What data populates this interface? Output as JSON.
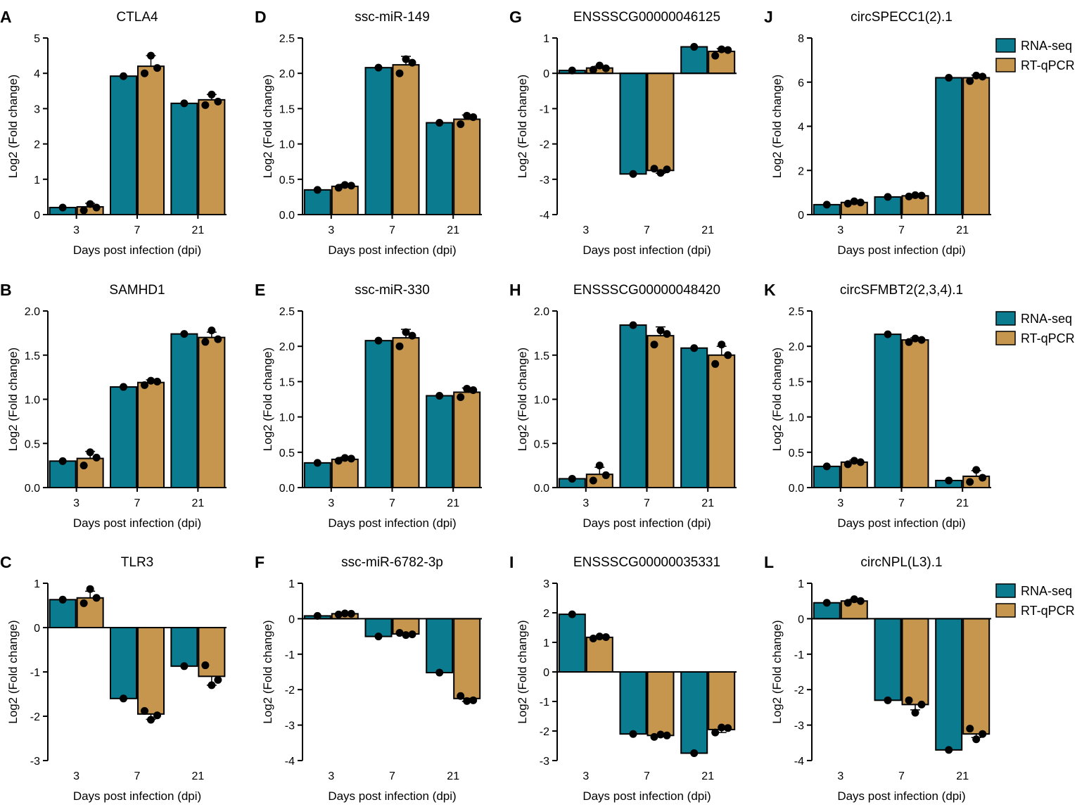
{
  "legend": {
    "items": [
      "RNA-seq",
      "RT-qPCR"
    ]
  },
  "colors": {
    "rnaseq": "#0b7c8f",
    "rtqpcr": "#c6964f",
    "points": "#000000"
  },
  "chart_data": [
    {
      "label": "A",
      "title": "CTLA4",
      "type": "bar",
      "categories": [
        "3",
        "7",
        "21"
      ],
      "xlabel": "Days post infection (dpi)",
      "ylabel": "Log2 (Fold change)",
      "ylim": [
        0,
        5
      ],
      "yticks": [
        0,
        1,
        2,
        3,
        4,
        5
      ],
      "ytick_labels": [
        "0",
        "1",
        "2",
        "3",
        "4",
        "5"
      ],
      "series": [
        {
          "name": "RNA-seq",
          "values": [
            0.2,
            3.92,
            3.15
          ],
          "errors": [
            0,
            0,
            0
          ],
          "points": [
            [
              0.2
            ],
            [
              3.92
            ],
            [
              3.15
            ]
          ]
        },
        {
          "name": "RT-qPCR",
          "values": [
            0.22,
            4.2,
            3.25
          ],
          "errors": [
            0.1,
            0.3,
            0.15
          ],
          "points": [
            [
              0.12,
              0.3,
              0.2
            ],
            [
              4.0,
              4.5,
              4.15
            ],
            [
              3.1,
              3.4,
              3.2
            ]
          ]
        }
      ]
    },
    {
      "label": "D",
      "title": "ssc-miR-149",
      "type": "bar",
      "categories": [
        "3",
        "7",
        "21"
      ],
      "xlabel": "Days post infection (dpi)",
      "ylabel": "Log2 (Fold change)",
      "ylim": [
        0,
        2.5
      ],
      "yticks": [
        0,
        0.5,
        1,
        1.5,
        2,
        2.5
      ],
      "ytick_labels": [
        "0.0",
        "0.5",
        "1.0",
        "1.5",
        "2.0",
        "2.5"
      ],
      "series": [
        {
          "name": "RNA-seq",
          "values": [
            0.35,
            2.08,
            1.3
          ],
          "errors": [
            0,
            0,
            0
          ],
          "points": [
            [
              0.35
            ],
            [
              2.08
            ],
            [
              1.3
            ]
          ]
        },
        {
          "name": "RT-qPCR",
          "values": [
            0.4,
            2.12,
            1.35
          ],
          "errors": [
            0.03,
            0.12,
            0.06
          ],
          "points": [
            [
              0.38,
              0.42,
              0.41
            ],
            [
              2.0,
              2.2,
              2.15
            ],
            [
              1.28,
              1.4,
              1.38
            ]
          ]
        }
      ]
    },
    {
      "label": "G",
      "title": "ENSSSCG00000046125",
      "type": "bar",
      "categories": [
        "3",
        "7",
        "21"
      ],
      "xlabel": "Days post infection (dpi)",
      "ylabel": "Log2 (Fold change)",
      "ylim": [
        -4,
        1
      ],
      "yticks": [
        -4,
        -3,
        -2,
        -1,
        0,
        1
      ],
      "ytick_labels": [
        "-4",
        "-3",
        "-2",
        "-1",
        "0",
        "1"
      ],
      "series": [
        {
          "name": "RNA-seq",
          "values": [
            0.08,
            -2.85,
            0.75
          ],
          "errors": [
            0,
            0,
            0
          ],
          "points": [
            [
              0.08
            ],
            [
              -2.85
            ],
            [
              0.75
            ]
          ]
        },
        {
          "name": "RT-qPCR",
          "values": [
            0.15,
            -2.75,
            0.62
          ],
          "errors": [
            0.06,
            0.08,
            0.08
          ],
          "points": [
            [
              0.1,
              0.22,
              0.14
            ],
            [
              -2.7,
              -2.82,
              -2.72
            ],
            [
              0.5,
              0.68,
              0.66
            ]
          ]
        }
      ]
    },
    {
      "label": "J",
      "title": "circSPECC1(2).1",
      "type": "bar",
      "categories": [
        "3",
        "7",
        "21"
      ],
      "xlabel": "Days post infection (dpi)",
      "ylabel": "Log2 (Fold change)",
      "ylim": [
        0,
        8
      ],
      "yticks": [
        0,
        2,
        4,
        6,
        8
      ],
      "ytick_labels": [
        "0",
        "2",
        "4",
        "6",
        "8"
      ],
      "series": [
        {
          "name": "RNA-seq",
          "values": [
            0.45,
            0.8,
            6.2
          ],
          "errors": [
            0,
            0,
            0
          ],
          "points": [
            [
              0.45
            ],
            [
              0.8
            ],
            [
              6.2
            ]
          ]
        },
        {
          "name": "RT-qPCR",
          "values": [
            0.55,
            0.85,
            6.2
          ],
          "errors": [
            0.05,
            0.05,
            0.12
          ],
          "points": [
            [
              0.5,
              0.6,
              0.55
            ],
            [
              0.82,
              0.88,
              0.86
            ],
            [
              6.05,
              6.3,
              6.25
            ]
          ]
        }
      ]
    },
    {
      "label": "B",
      "title": "SAMHD1",
      "type": "bar",
      "categories": [
        "3",
        "7",
        "21"
      ],
      "xlabel": "Days post infection (dpi)",
      "ylabel": "Log2 (Fold change)",
      "ylim": [
        0,
        2
      ],
      "yticks": [
        0,
        0.5,
        1,
        1.5,
        2
      ],
      "ytick_labels": [
        "0.0",
        "0.5",
        "1.0",
        "1.5",
        "2.0"
      ],
      "series": [
        {
          "name": "RNA-seq",
          "values": [
            0.3,
            1.14,
            1.74
          ],
          "errors": [
            0,
            0,
            0
          ],
          "points": [
            [
              0.3
            ],
            [
              1.14
            ],
            [
              1.74
            ]
          ]
        },
        {
          "name": "RT-qPCR",
          "values": [
            0.33,
            1.19,
            1.7
          ],
          "errors": [
            0.08,
            0.03,
            0.06
          ],
          "points": [
            [
              0.25,
              0.4,
              0.34
            ],
            [
              1.16,
              1.21,
              1.2
            ],
            [
              1.65,
              1.78,
              1.68
            ]
          ]
        }
      ]
    },
    {
      "label": "E",
      "title": "ssc-miR-330",
      "type": "bar",
      "categories": [
        "3",
        "7",
        "21"
      ],
      "xlabel": "Days post infection (dpi)",
      "ylabel": "Log2 (Fold change)",
      "ylim": [
        0,
        2.5
      ],
      "yticks": [
        0,
        0.5,
        1,
        1.5,
        2,
        2.5
      ],
      "ytick_labels": [
        "0.0",
        "0.5",
        "1.0",
        "1.5",
        "2.0",
        "2.5"
      ],
      "series": [
        {
          "name": "RNA-seq",
          "values": [
            0.35,
            2.08,
            1.3
          ],
          "errors": [
            0,
            0,
            0
          ],
          "points": [
            [
              0.35
            ],
            [
              2.08
            ],
            [
              1.3
            ]
          ]
        },
        {
          "name": "RT-qPCR",
          "values": [
            0.4,
            2.12,
            1.35
          ],
          "errors": [
            0.03,
            0.12,
            0.06
          ],
          "points": [
            [
              0.38,
              0.42,
              0.41
            ],
            [
              2.0,
              2.2,
              2.15
            ],
            [
              1.28,
              1.4,
              1.38
            ]
          ]
        }
      ]
    },
    {
      "label": "H",
      "title": "ENSSSCG00000048420",
      "type": "bar",
      "categories": [
        "3",
        "7",
        "21"
      ],
      "xlabel": "Days post infection (dpi)",
      "ylabel": "Log2 (Fold change)",
      "ylim": [
        0,
        2
      ],
      "yticks": [
        0,
        0.5,
        1,
        1.5,
        2
      ],
      "ytick_labels": [
        "0.0",
        "0.5",
        "1.0",
        "1.5",
        "2.0"
      ],
      "series": [
        {
          "name": "RNA-seq",
          "values": [
            0.1,
            1.84,
            1.58
          ],
          "errors": [
            0,
            0,
            0
          ],
          "points": [
            [
              0.1
            ],
            [
              1.84
            ],
            [
              1.58
            ]
          ]
        },
        {
          "name": "RT-qPCR",
          "values": [
            0.15,
            1.72,
            1.5
          ],
          "errors": [
            0.08,
            0.1,
            0.1
          ],
          "points": [
            [
              0.08,
              0.25,
              0.14
            ],
            [
              1.62,
              1.78,
              1.74
            ],
            [
              1.4,
              1.62,
              1.5
            ]
          ]
        }
      ]
    },
    {
      "label": "K",
      "title": "circSFMBT2(2,3,4).1",
      "type": "bar",
      "categories": [
        "3",
        "7",
        "21"
      ],
      "xlabel": "Days post infection (dpi)",
      "ylabel": "Log2 (Fold change)",
      "ylim": [
        0,
        2.5
      ],
      "yticks": [
        0,
        0.5,
        1,
        1.5,
        2,
        2.5
      ],
      "ytick_labels": [
        "0.0",
        "0.5",
        "1.0",
        "1.5",
        "2.0",
        "2.5"
      ],
      "series": [
        {
          "name": "RNA-seq",
          "values": [
            0.3,
            2.17,
            0.1
          ],
          "errors": [
            0,
            0,
            0
          ],
          "points": [
            [
              0.3
            ],
            [
              2.17
            ],
            [
              0.1
            ]
          ]
        },
        {
          "name": "RT-qPCR",
          "values": [
            0.36,
            2.09,
            0.16
          ],
          "errors": [
            0.03,
            0.03,
            0.08
          ],
          "points": [
            [
              0.33,
              0.38,
              0.36
            ],
            [
              2.06,
              2.11,
              2.09
            ],
            [
              0.08,
              0.25,
              0.14
            ]
          ]
        }
      ]
    },
    {
      "label": "C",
      "title": "TLR3",
      "type": "bar",
      "categories": [
        "3",
        "7",
        "21"
      ],
      "xlabel": "Days post infection (dpi)",
      "ylabel": "Log2 (Fold change)",
      "ylim": [
        -3,
        1
      ],
      "yticks": [
        -3,
        -2,
        -1,
        0,
        1
      ],
      "ytick_labels": [
        "-3",
        "-2",
        "-1",
        "0",
        "1"
      ],
      "series": [
        {
          "name": "RNA-seq",
          "values": [
            0.63,
            -1.6,
            -0.87
          ],
          "errors": [
            0,
            0,
            0
          ],
          "points": [
            [
              0.63
            ],
            [
              -1.6
            ],
            [
              -0.87
            ]
          ]
        },
        {
          "name": "RT-qPCR",
          "values": [
            0.67,
            -1.95,
            -1.1
          ],
          "errors": [
            0.15,
            0.12,
            0.2
          ],
          "points": [
            [
              0.55,
              0.87,
              0.67
            ],
            [
              -1.88,
              -2.08,
              -1.98
            ],
            [
              -0.85,
              -1.3,
              -1.18
            ]
          ]
        }
      ]
    },
    {
      "label": "F",
      "title": "ssc-miR-6782-3p",
      "type": "bar",
      "categories": [
        "3",
        "7",
        "21"
      ],
      "xlabel": "Days post infection (dpi)",
      "ylabel": "Log2 (Fold change)",
      "ylim": [
        -4,
        1
      ],
      "yticks": [
        -4,
        -3,
        -2,
        -1,
        0,
        1
      ],
      "ytick_labels": [
        "-4",
        "-3",
        "-2",
        "-1",
        "0",
        "1"
      ],
      "series": [
        {
          "name": "RNA-seq",
          "values": [
            0.08,
            -0.5,
            -1.52
          ],
          "errors": [
            0,
            0,
            0
          ],
          "points": [
            [
              0.08
            ],
            [
              -0.5
            ],
            [
              -1.52
            ]
          ]
        },
        {
          "name": "RT-qPCR",
          "values": [
            0.14,
            -0.43,
            -2.25
          ],
          "errors": [
            0.02,
            0.03,
            0.08
          ],
          "points": [
            [
              0.12,
              0.15,
              0.14
            ],
            [
              -0.4,
              -0.46,
              -0.44
            ],
            [
              -2.18,
              -2.32,
              -2.3
            ]
          ]
        }
      ]
    },
    {
      "label": "I",
      "title": "ENSSSCG00000035331",
      "type": "bar",
      "categories": [
        "3",
        "7",
        "21"
      ],
      "xlabel": "Days post infection (dpi)",
      "ylabel": "Log2 (Fold change)",
      "ylim": [
        -3,
        3
      ],
      "yticks": [
        -3,
        -2,
        -1,
        0,
        1,
        2,
        3
      ],
      "ytick_labels": [
        "-3",
        "-2",
        "-1",
        "0",
        "1",
        "2",
        "3"
      ],
      "series": [
        {
          "name": "RNA-seq",
          "values": [
            1.95,
            -2.1,
            -2.75
          ],
          "errors": [
            0,
            0,
            0
          ],
          "points": [
            [
              1.95
            ],
            [
              -2.1
            ],
            [
              -2.75
            ]
          ]
        },
        {
          "name": "RT-qPCR",
          "values": [
            1.17,
            -2.15,
            -1.95
          ],
          "errors": [
            0.04,
            0.04,
            0.1
          ],
          "points": [
            [
              1.13,
              1.2,
              1.18
            ],
            [
              -2.2,
              -2.12,
              -2.15
            ],
            [
              -2.05,
              -1.88,
              -1.9
            ]
          ]
        }
      ]
    },
    {
      "label": "L",
      "title": "circNPL(L3).1",
      "type": "bar",
      "categories": [
        "3",
        "7",
        "21"
      ],
      "xlabel": "Days post infection (dpi)",
      "ylabel": "Log2 (Fold change)",
      "ylim": [
        -4,
        1
      ],
      "yticks": [
        -4,
        -3,
        -2,
        -1,
        0,
        1
      ],
      "ytick_labels": [
        "-4",
        "-3",
        "-2",
        "-1",
        "0",
        "1"
      ],
      "series": [
        {
          "name": "RNA-seq",
          "values": [
            0.45,
            -2.3,
            -3.7
          ],
          "errors": [
            0,
            0,
            0
          ],
          "points": [
            [
              0.45
            ],
            [
              -2.3
            ],
            [
              -3.7
            ]
          ]
        },
        {
          "name": "RT-qPCR",
          "values": [
            0.5,
            -2.42,
            -3.25
          ],
          "errors": [
            0.05,
            0.15,
            0.1
          ],
          "points": [
            [
              0.45,
              0.55,
              0.5
            ],
            [
              -2.3,
              -2.65,
              -2.42
            ],
            [
              -3.1,
              -3.4,
              -3.25
            ]
          ]
        }
      ]
    }
  ]
}
